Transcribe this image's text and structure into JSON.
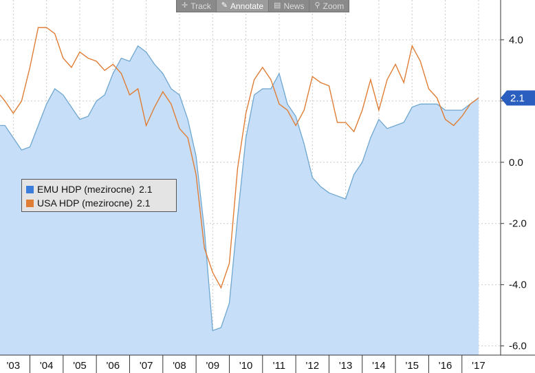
{
  "toolbar": {
    "items": [
      {
        "label": "Track",
        "icon": "crosshair-icon"
      },
      {
        "label": "Annotate",
        "icon": "pencil-icon"
      },
      {
        "label": "News",
        "icon": "newspaper-icon"
      },
      {
        "label": "Zoom",
        "icon": "magnifier-icon"
      }
    ],
    "active_index": 1
  },
  "legend": {
    "items": [
      {
        "label": "EMU HDP (mezirocne)",
        "value": "2.1"
      },
      {
        "label": "USA HDP (mezirocne)",
        "value": "2.1"
      }
    ]
  },
  "last_value_tag": "2.1",
  "colors": {
    "emu_fill": "#c6def7",
    "emu_line": "#6ea6cf",
    "emu_swatch": "#3b7ddb",
    "usa_line": "#e07d35",
    "usa_swatch": "#e07d35",
    "tag_bg": "#2b5fbf",
    "grid": "#c8c8c8"
  },
  "chart_data": {
    "type": "area",
    "xlabel": "",
    "ylabel": "",
    "ylim": [
      -6.3,
      5.3
    ],
    "y_ticks": [
      "4.0",
      "2.0",
      "0.0",
      "-2.0",
      "-4.0",
      "-6.0"
    ],
    "y_tick_values": [
      4,
      2,
      0,
      -2,
      -4,
      -6
    ],
    "x_ticks": [
      "'03",
      "'04",
      "'05",
      "'06",
      "'07",
      "'08",
      "'09",
      "'10",
      "'11",
      "'12",
      "'13",
      "'14",
      "'15",
      "'16",
      "'17"
    ],
    "x_tick_values": [
      2003,
      2004,
      2005,
      2006,
      2007,
      2008,
      2009,
      2010,
      2011,
      2012,
      2013,
      2014,
      2015,
      2016,
      2017
    ],
    "x_range": [
      2002.6,
      2017.25
    ],
    "grid": true,
    "legend_position": "middle-left",
    "series": [
      {
        "name": "EMU HDP (mezirocne)",
        "style": "area",
        "x": [
          2002.6,
          2002.75,
          2003.0,
          2003.25,
          2003.5,
          2003.75,
          2004.0,
          2004.25,
          2004.5,
          2004.75,
          2005.0,
          2005.25,
          2005.5,
          2005.75,
          2006.0,
          2006.25,
          2006.5,
          2006.75,
          2007.0,
          2007.25,
          2007.5,
          2007.75,
          2008.0,
          2008.25,
          2008.5,
          2008.75,
          2009.0,
          2009.25,
          2009.5,
          2009.75,
          2010.0,
          2010.25,
          2010.5,
          2010.75,
          2011.0,
          2011.25,
          2011.5,
          2011.75,
          2012.0,
          2012.25,
          2012.5,
          2012.75,
          2013.0,
          2013.25,
          2013.5,
          2013.75,
          2014.0,
          2014.25,
          2014.5,
          2014.75,
          2015.0,
          2015.25,
          2015.5,
          2015.75,
          2016.0,
          2016.25,
          2016.5,
          2016.75,
          2017.0
        ],
        "values": [
          1.2,
          1.2,
          0.8,
          0.4,
          0.5,
          1.2,
          1.9,
          2.4,
          2.2,
          1.8,
          1.4,
          1.5,
          2.0,
          2.2,
          2.9,
          3.4,
          3.3,
          3.8,
          3.6,
          3.2,
          2.9,
          2.4,
          2.2,
          1.4,
          0.2,
          -2.2,
          -5.5,
          -5.4,
          -4.6,
          -1.8,
          0.8,
          2.2,
          2.4,
          2.4,
          2.9,
          1.9,
          1.5,
          0.6,
          -0.5,
          -0.8,
          -1.0,
          -1.1,
          -1.2,
          -0.4,
          0.0,
          0.8,
          1.4,
          1.1,
          1.2,
          1.3,
          1.8,
          1.9,
          1.9,
          1.9,
          1.7,
          1.7,
          1.7,
          1.9,
          2.1
        ]
      },
      {
        "name": "USA HDP (mezirocne)",
        "style": "line",
        "x": [
          2002.6,
          2002.75,
          2003.0,
          2003.25,
          2003.5,
          2003.75,
          2004.0,
          2004.25,
          2004.5,
          2004.75,
          2005.0,
          2005.25,
          2005.5,
          2005.75,
          2006.0,
          2006.25,
          2006.5,
          2006.75,
          2007.0,
          2007.25,
          2007.5,
          2007.75,
          2008.0,
          2008.25,
          2008.5,
          2008.75,
          2009.0,
          2009.25,
          2009.5,
          2009.75,
          2010.0,
          2010.25,
          2010.5,
          2010.75,
          2011.0,
          2011.25,
          2011.5,
          2011.75,
          2012.0,
          2012.25,
          2012.5,
          2012.75,
          2013.0,
          2013.25,
          2013.5,
          2013.75,
          2014.0,
          2014.25,
          2014.5,
          2014.75,
          2015.0,
          2015.25,
          2015.5,
          2015.75,
          2016.0,
          2016.25,
          2016.5,
          2016.75,
          2017.0
        ],
        "values": [
          2.2,
          2.0,
          1.6,
          2.0,
          3.1,
          4.4,
          4.4,
          4.2,
          3.4,
          3.1,
          3.6,
          3.4,
          3.3,
          3.0,
          3.2,
          2.9,
          2.2,
          2.4,
          1.2,
          1.8,
          2.3,
          1.9,
          1.1,
          0.8,
          -0.4,
          -2.8,
          -3.6,
          -4.1,
          -3.3,
          -0.2,
          1.6,
          2.7,
          3.1,
          2.7,
          1.9,
          1.7,
          1.2,
          1.7,
          2.8,
          2.6,
          2.5,
          1.3,
          1.3,
          1.0,
          1.7,
          2.7,
          1.7,
          2.7,
          3.2,
          2.6,
          3.8,
          3.3,
          2.4,
          2.1,
          1.4,
          1.2,
          1.5,
          1.9,
          2.1
        ]
      }
    ]
  }
}
